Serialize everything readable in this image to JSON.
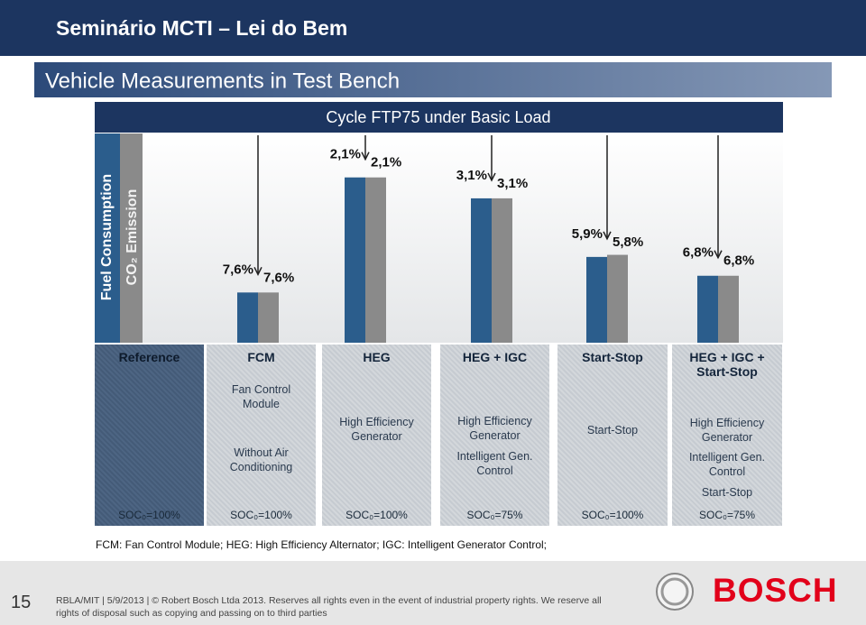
{
  "header": {
    "title": "Seminário MCTI – Lei do Bem",
    "subtitle": "Vehicle Measurements in Test Bench"
  },
  "chart_data": {
    "type": "bar",
    "title": "Cycle FTP75 under Basic Load",
    "categories": [
      "Reference",
      "FCM",
      "HEG",
      "HEG + IGC",
      "Start-Stop",
      "HEG + IGC + Start-Stop"
    ],
    "series": [
      {
        "name": "Fuel Consumption",
        "color": "#2b5d8c",
        "values": [
          0,
          7.6,
          2.1,
          3.1,
          5.9,
          6.8
        ],
        "value_labels": [
          null,
          "7,6%",
          "2,1%",
          "3,1%",
          "5,9%",
          "6,8%"
        ]
      },
      {
        "name": "CO₂ Emission",
        "color": "#8a8a8a",
        "values": [
          0,
          7.6,
          2.1,
          3.1,
          5.8,
          6.8
        ],
        "value_labels": [
          null,
          "7,6%",
          "2,1%",
          "3,1%",
          "5,8%",
          "6,8%"
        ]
      }
    ],
    "ylim": [
      10,
      0
    ]
  },
  "columns": [
    {
      "details": [],
      "soc": "SOC₀=100%"
    },
    {
      "details": [
        "Fan Control Module",
        "Without Air Conditioning"
      ],
      "soc": "SOC₀=100%"
    },
    {
      "details": [
        "High Efficiency Generator"
      ],
      "soc": "SOC₀=100%"
    },
    {
      "details": [
        "High Efficiency Generator",
        "Intelligent Gen. Control"
      ],
      "soc": "SOC₀=75%"
    },
    {
      "details": [
        "Start-Stop"
      ],
      "soc": "SOC₀=100%"
    },
    {
      "details": [
        "High Efficiency Generator",
        "Intelligent Gen. Control",
        "Start-Stop"
      ],
      "soc": "SOC₀=75%"
    }
  ],
  "footnote": "FCM: Fan Control Module; HEG: High Efficiency Alternator; IGC: Intelligent Generator Control;",
  "footer": {
    "page": "15",
    "text": "RBLA/MIT | 5/9/2013 | © Robert Bosch Ltda 2013. Reserves all rights even in the event of industrial property rights. We reserve all rights of disposal such as copying and passing on to third parties",
    "logo": "BOSCH"
  }
}
